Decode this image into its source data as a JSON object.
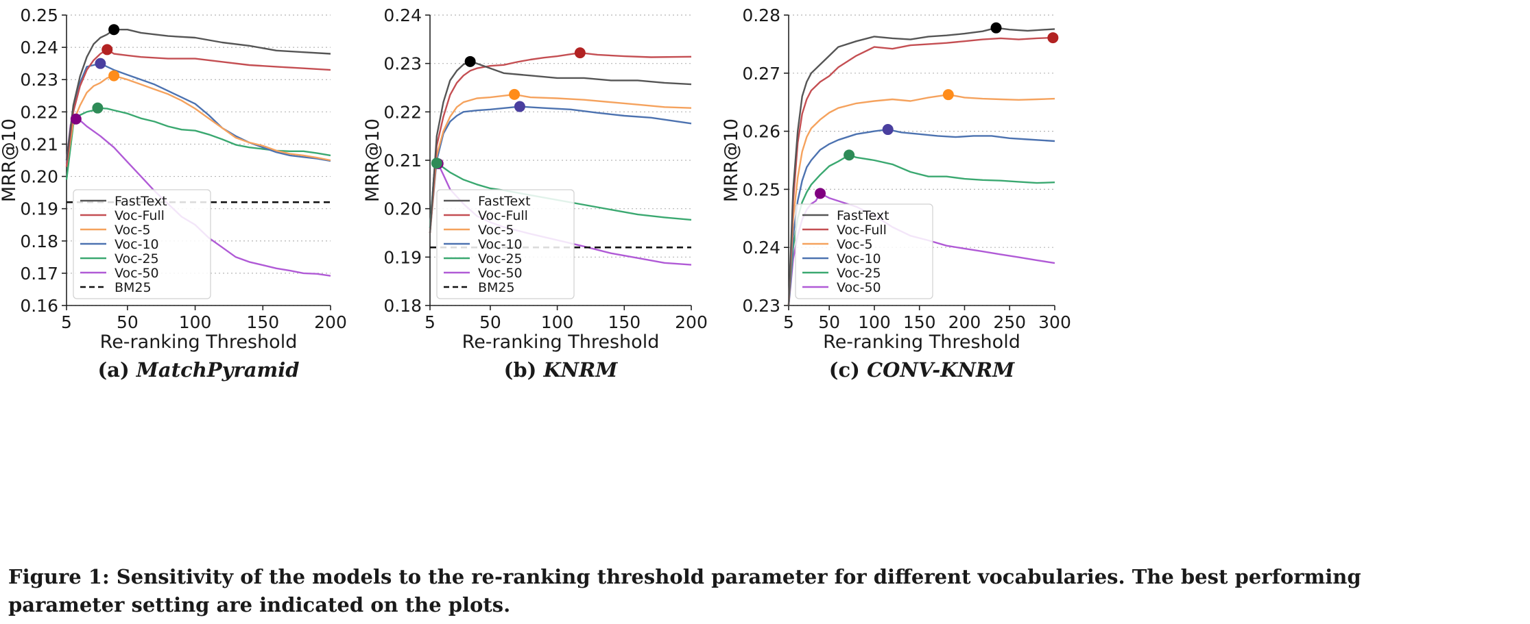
{
  "figure": {
    "caption_label": "Figure 1:",
    "caption_line1": "Sensitivity of the models to the re-ranking threshold parameter for different vocabularies. The best performing",
    "caption_line2": "parameter setting are indicated on the plots."
  },
  "colors": {
    "FastText": "#555555",
    "Voc-Full": "#c44e52",
    "Voc-5": "#f5a25d",
    "Voc-10": "#4c72b0",
    "Voc-25": "#3aa870",
    "Voc-50": "#b05ad6",
    "BM25": "#111111",
    "best_markers": [
      "#000000",
      "#b22222",
      "#ff8c1a",
      "#4a3f9f",
      "#2e8b57",
      "#800080"
    ]
  },
  "chart_data": [
    {
      "type": "line",
      "sub_label": "(a)",
      "title": "MatchPyramid",
      "xlabel": "Re-ranking Threshold",
      "ylabel": "MRR@10",
      "xlim": [
        5,
        200
      ],
      "ylim": [
        0.16,
        0.25
      ],
      "xticks": [
        5,
        50,
        100,
        150,
        200
      ],
      "yticks": [
        0.16,
        0.17,
        0.18,
        0.19,
        0.2,
        0.21,
        0.22,
        0.23,
        0.24,
        0.25
      ],
      "grid": "horizontal dotted",
      "legend_position": "bottom-left",
      "series": [
        {
          "name": "FastText",
          "best": [
            40,
            0.2455
          ],
          "x": [
            5,
            10,
            15,
            20,
            25,
            30,
            35,
            40,
            50,
            60,
            80,
            100,
            120,
            140,
            160,
            180,
            200
          ],
          "y": [
            0.205,
            0.222,
            0.231,
            0.237,
            0.241,
            0.243,
            0.244,
            0.2455,
            0.2455,
            0.2445,
            0.2435,
            0.243,
            0.2415,
            0.2405,
            0.239,
            0.2385,
            0.238
          ]
        },
        {
          "name": "Voc-Full",
          "best": [
            35,
            0.2393
          ],
          "x": [
            5,
            10,
            15,
            20,
            25,
            30,
            35,
            40,
            50,
            60,
            80,
            100,
            120,
            140,
            160,
            180,
            200
          ],
          "y": [
            0.203,
            0.22,
            0.228,
            0.233,
            0.236,
            0.238,
            0.2393,
            0.238,
            0.2375,
            0.237,
            0.2365,
            0.2365,
            0.2355,
            0.2345,
            0.234,
            0.2335,
            0.233
          ]
        },
        {
          "name": "Voc-5",
          "best": [
            40,
            0.2312
          ],
          "x": [
            5,
            10,
            15,
            20,
            25,
            30,
            35,
            40,
            50,
            60,
            70,
            80,
            90,
            100,
            110,
            120,
            130,
            140,
            150,
            160,
            170,
            180,
            190,
            200
          ],
          "y": [
            0.203,
            0.217,
            0.222,
            0.226,
            0.228,
            0.229,
            0.2305,
            0.2312,
            0.23,
            0.2285,
            0.227,
            0.2255,
            0.2235,
            0.221,
            0.218,
            0.215,
            0.212,
            0.2105,
            0.2095,
            0.208,
            0.207,
            0.2065,
            0.2058,
            0.205
          ]
        },
        {
          "name": "Voc-10",
          "best": [
            30,
            0.235
          ],
          "x": [
            5,
            10,
            15,
            20,
            25,
            30,
            35,
            40,
            50,
            60,
            70,
            80,
            90,
            100,
            110,
            120,
            130,
            140,
            150,
            160,
            170,
            180,
            190,
            200
          ],
          "y": [
            0.204,
            0.221,
            0.229,
            0.234,
            0.2345,
            0.235,
            0.234,
            0.233,
            0.2315,
            0.23,
            0.2285,
            0.2265,
            0.2245,
            0.2225,
            0.219,
            0.215,
            0.2125,
            0.2105,
            0.209,
            0.2075,
            0.2065,
            0.206,
            0.2055,
            0.2048
          ]
        },
        {
          "name": "Voc-25",
          "best": [
            28,
            0.2212
          ],
          "x": [
            5,
            10,
            15,
            20,
            25,
            28,
            35,
            40,
            50,
            60,
            70,
            80,
            90,
            100,
            110,
            120,
            130,
            140,
            150,
            160,
            170,
            180,
            190,
            200
          ],
          "y": [
            0.199,
            0.216,
            0.219,
            0.22,
            0.2205,
            0.2212,
            0.221,
            0.2205,
            0.2195,
            0.218,
            0.217,
            0.2155,
            0.2145,
            0.2142,
            0.213,
            0.2115,
            0.2098,
            0.209,
            0.2085,
            0.208,
            0.2078,
            0.2078,
            0.2072,
            0.2065
          ]
        },
        {
          "name": "Voc-50",
          "best": [
            12,
            0.2178
          ],
          "x": [
            5,
            8,
            12,
            16,
            20,
            30,
            40,
            50,
            60,
            70,
            80,
            90,
            100,
            110,
            120,
            130,
            140,
            150,
            160,
            170,
            180,
            190,
            200
          ],
          "y": [
            0.205,
            0.216,
            0.2178,
            0.217,
            0.2155,
            0.2125,
            0.209,
            0.2045,
            0.2,
            0.1955,
            0.1915,
            0.1875,
            0.185,
            0.181,
            0.178,
            0.175,
            0.1735,
            0.1725,
            0.1715,
            0.1708,
            0.17,
            0.1698,
            0.1692
          ]
        },
        {
          "name": "BM25",
          "dashed": true,
          "x": [
            5,
            200
          ],
          "y": [
            0.192,
            0.192
          ]
        }
      ]
    },
    {
      "type": "line",
      "sub_label": "(b)",
      "title": "KNRM",
      "xlabel": "Re-ranking Threshold",
      "ylabel": "MRR@10",
      "xlim": [
        5,
        200
      ],
      "ylim": [
        0.18,
        0.24
      ],
      "xticks": [
        5,
        50,
        100,
        150,
        200
      ],
      "yticks": [
        0.18,
        0.19,
        0.2,
        0.21,
        0.22,
        0.23,
        0.24
      ],
      "grid": "horizontal dotted",
      "legend_position": "bottom-left",
      "series": [
        {
          "name": "FastText",
          "best": [
            35,
            0.2304
          ],
          "x": [
            5,
            10,
            15,
            20,
            25,
            30,
            35,
            40,
            50,
            60,
            80,
            100,
            120,
            140,
            160,
            180,
            200
          ],
          "y": [
            0.195,
            0.215,
            0.222,
            0.2265,
            0.2285,
            0.2298,
            0.2304,
            0.23,
            0.229,
            0.228,
            0.2275,
            0.227,
            0.227,
            0.2265,
            0.2265,
            0.226,
            0.2257
          ]
        },
        {
          "name": "Voc-Full",
          "best": [
            117,
            0.2322
          ],
          "x": [
            5,
            10,
            15,
            20,
            25,
            30,
            35,
            40,
            50,
            60,
            70,
            80,
            90,
            100,
            117,
            130,
            150,
            170,
            200
          ],
          "y": [
            0.195,
            0.213,
            0.219,
            0.2235,
            0.226,
            0.2275,
            0.2285,
            0.229,
            0.2295,
            0.2297,
            0.2303,
            0.2308,
            0.2312,
            0.2315,
            0.2322,
            0.2318,
            0.2315,
            0.2313,
            0.2314
          ]
        },
        {
          "name": "Voc-5",
          "best": [
            68,
            0.2236
          ],
          "x": [
            5,
            10,
            15,
            20,
            25,
            30,
            40,
            50,
            68,
            80,
            100,
            120,
            140,
            160,
            180,
            200
          ],
          "y": [
            0.195,
            0.211,
            0.216,
            0.219,
            0.221,
            0.222,
            0.2228,
            0.223,
            0.2236,
            0.223,
            0.2228,
            0.2225,
            0.222,
            0.2215,
            0.221,
            0.2208
          ]
        },
        {
          "name": "Voc-10",
          "best": [
            72,
            0.2211
          ],
          "x": [
            5,
            10,
            15,
            20,
            25,
            30,
            40,
            50,
            72,
            90,
            110,
            130,
            150,
            170,
            200
          ],
          "y": [
            0.195,
            0.21,
            0.2155,
            0.218,
            0.2192,
            0.22,
            0.2203,
            0.2205,
            0.2211,
            0.2208,
            0.2205,
            0.2198,
            0.2192,
            0.2188,
            0.2176
          ]
        },
        {
          "name": "Voc-25",
          "best": [
            10,
            0.2094
          ],
          "x": [
            5,
            8,
            10,
            15,
            20,
            30,
            40,
            50,
            60,
            80,
            100,
            120,
            140,
            160,
            180,
            200
          ],
          "y": [
            0.196,
            0.207,
            0.2094,
            0.2085,
            0.2075,
            0.206,
            0.205,
            0.2042,
            0.2038,
            0.2028,
            0.2018,
            0.2008,
            0.1998,
            0.1988,
            0.1982,
            0.1977
          ]
        },
        {
          "name": "Voc-50",
          "best": [
            11,
            0.2093
          ],
          "x": [
            5,
            8,
            11,
            15,
            20,
            30,
            40,
            50,
            60,
            80,
            100,
            120,
            140,
            160,
            180,
            200
          ],
          "y": [
            0.196,
            0.207,
            0.2093,
            0.207,
            0.204,
            0.201,
            0.1985,
            0.1972,
            0.1962,
            0.1948,
            0.1935,
            0.1922,
            0.1908,
            0.1898,
            0.1888,
            0.1884
          ]
        },
        {
          "name": "BM25",
          "dashed": true,
          "x": [
            5,
            200
          ],
          "y": [
            0.192,
            0.192
          ]
        }
      ]
    },
    {
      "type": "line",
      "sub_label": "(c)",
      "title": "CONV-KNRM",
      "xlabel": "Re-ranking Threshold",
      "ylabel": "MRR@10",
      "xlim": [
        5,
        300
      ],
      "ylim": [
        0.23,
        0.28
      ],
      "xticks": [
        5,
        50,
        100,
        150,
        200,
        250,
        300
      ],
      "yticks": [
        0.23,
        0.24,
        0.25,
        0.26,
        0.27,
        0.28
      ],
      "grid": "horizontal dotted",
      "legend_position": "bottom-left",
      "series": [
        {
          "name": "FastText",
          "best": [
            235,
            0.2778
          ],
          "x": [
            5,
            10,
            15,
            20,
            25,
            30,
            40,
            50,
            60,
            80,
            100,
            120,
            140,
            160,
            180,
            200,
            220,
            235,
            250,
            270,
            300
          ],
          "y": [
            0.23,
            0.25,
            0.26,
            0.266,
            0.2685,
            0.27,
            0.2715,
            0.273,
            0.2745,
            0.2755,
            0.2763,
            0.276,
            0.2758,
            0.2763,
            0.2765,
            0.2768,
            0.2772,
            0.2778,
            0.2775,
            0.2773,
            0.2776
          ]
        },
        {
          "name": "Voc-Full",
          "best": [
            298,
            0.2761
          ],
          "x": [
            5,
            10,
            15,
            20,
            25,
            30,
            40,
            50,
            60,
            80,
            100,
            120,
            140,
            160,
            180,
            200,
            220,
            240,
            260,
            280,
            298
          ],
          "y": [
            0.23,
            0.248,
            0.258,
            0.263,
            0.2655,
            0.267,
            0.2685,
            0.2695,
            0.271,
            0.273,
            0.2745,
            0.2742,
            0.2748,
            0.275,
            0.2752,
            0.2755,
            0.2758,
            0.276,
            0.2758,
            0.276,
            0.2761
          ]
        },
        {
          "name": "Voc-5",
          "best": [
            182,
            0.2663
          ],
          "x": [
            5,
            10,
            15,
            20,
            25,
            30,
            40,
            50,
            60,
            80,
            100,
            120,
            140,
            160,
            182,
            200,
            220,
            240,
            260,
            280,
            300
          ],
          "y": [
            0.23,
            0.245,
            0.252,
            0.2565,
            0.259,
            0.2605,
            0.262,
            0.2632,
            0.264,
            0.2648,
            0.2652,
            0.2655,
            0.2652,
            0.2658,
            0.2663,
            0.2658,
            0.2656,
            0.2655,
            0.2654,
            0.2655,
            0.2656
          ]
        },
        {
          "name": "Voc-10",
          "best": [
            115,
            0.2603
          ],
          "x": [
            5,
            10,
            15,
            20,
            25,
            30,
            40,
            50,
            60,
            80,
            100,
            115,
            130,
            150,
            170,
            190,
            210,
            230,
            250,
            270,
            300
          ],
          "y": [
            0.23,
            0.242,
            0.248,
            0.2515,
            0.2538,
            0.255,
            0.2568,
            0.2578,
            0.2585,
            0.2595,
            0.26,
            0.2603,
            0.2598,
            0.2595,
            0.2592,
            0.259,
            0.2592,
            0.2592,
            0.2588,
            0.2586,
            0.2583
          ]
        },
        {
          "name": "Voc-25",
          "best": [
            72,
            0.2559
          ],
          "x": [
            5,
            10,
            15,
            20,
            25,
            30,
            40,
            50,
            60,
            72,
            80,
            100,
            120,
            140,
            160,
            180,
            200,
            220,
            240,
            260,
            280,
            300
          ],
          "y": [
            0.23,
            0.24,
            0.245,
            0.2478,
            0.2495,
            0.2508,
            0.2525,
            0.254,
            0.2548,
            0.2559,
            0.2555,
            0.255,
            0.2543,
            0.253,
            0.2522,
            0.2522,
            0.2518,
            0.2516,
            0.2515,
            0.2513,
            0.2511,
            0.2512
          ]
        },
        {
          "name": "Voc-50",
          "best": [
            40,
            0.2493
          ],
          "x": [
            5,
            10,
            15,
            20,
            25,
            30,
            35,
            40,
            50,
            60,
            70,
            80,
            100,
            120,
            140,
            160,
            180,
            200,
            220,
            240,
            260,
            280,
            300
          ],
          "y": [
            0.23,
            0.238,
            0.242,
            0.2448,
            0.2465,
            0.2475,
            0.248,
            0.2493,
            0.2485,
            0.248,
            0.2475,
            0.247,
            0.2455,
            0.2435,
            0.242,
            0.2412,
            0.2403,
            0.2398,
            0.2393,
            0.2388,
            0.2383,
            0.2378,
            0.2373
          ]
        }
      ]
    }
  ]
}
